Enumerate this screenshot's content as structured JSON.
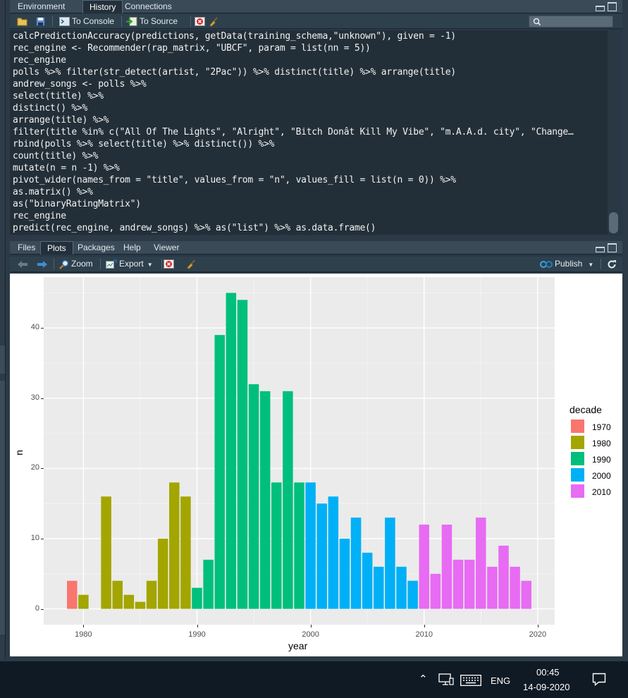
{
  "top_pane": {
    "tabs": [
      "Environment",
      "History",
      "Connections"
    ],
    "active_tab": "History",
    "toolbar": {
      "to_console": "To Console",
      "to_source": "To Source"
    },
    "history_lines": [
      "calcPredictionAccuracy(predictions, getData(training_schema,\"unknown\"), given = -1)",
      "rec_engine <- Recommender(rap_matrix, \"UBCF\", param = list(nn = 5))",
      "rec_engine",
      "polls %>% filter(str_detect(artist, \"2Pac\")) %>% distinct(title) %>% arrange(title)",
      "andrew_songs <- polls %>%",
      "select(title) %>%",
      "distinct() %>%",
      "arrange(title) %>%",
      "filter(title %in% c(\"All Of The Lights\", \"Alright\", \"Bitch Donât Kill My Vibe\", \"m.A.A.d. city\", \"Change…",
      "rbind(polls %>% select(title) %>% distinct()) %>%",
      "count(title) %>%",
      "mutate(n = n -1) %>%",
      "pivot_wider(names_from = \"title\", values_from = \"n\", values_fill = list(n = 0)) %>%",
      "as.matrix() %>%",
      "as(\"binaryRatingMatrix\")",
      "rec_engine",
      "predict(rec_engine, andrew_songs) %>% as(\"list\") %>% as.data.frame()"
    ]
  },
  "bottom_pane": {
    "tabs": [
      "Files",
      "Plots",
      "Packages",
      "Help",
      "Viewer"
    ],
    "active_tab": "Plots",
    "toolbar": {
      "zoom": "Zoom",
      "export": "Export",
      "publish": "Publish"
    }
  },
  "chart_data": {
    "type": "bar",
    "xlabel": "year",
    "ylabel": "n",
    "x_ticks": [
      1980,
      1990,
      2000,
      2010,
      2020
    ],
    "y_ticks": [
      0,
      10,
      20,
      30,
      40
    ],
    "xlim": [
      1976.5,
      2021.5
    ],
    "ylim": [
      -2.25,
      47.25
    ],
    "legend": {
      "title": "decade",
      "placement": "right",
      "entries": [
        {
          "name": "1970",
          "color": "#F8766D"
        },
        {
          "name": "1980",
          "color": "#A3A500"
        },
        {
          "name": "1990",
          "color": "#00BF7D"
        },
        {
          "name": "2000",
          "color": "#00B0F6"
        },
        {
          "name": "2010",
          "color": "#E76BF3"
        }
      ]
    },
    "bars": [
      {
        "year": 1979,
        "n": 4,
        "decade": "1970"
      },
      {
        "year": 1980,
        "n": 2,
        "decade": "1980"
      },
      {
        "year": 1982,
        "n": 16,
        "decade": "1980"
      },
      {
        "year": 1983,
        "n": 4,
        "decade": "1980"
      },
      {
        "year": 1984,
        "n": 2,
        "decade": "1980"
      },
      {
        "year": 1985,
        "n": 1,
        "decade": "1980"
      },
      {
        "year": 1986,
        "n": 4,
        "decade": "1980"
      },
      {
        "year": 1987,
        "n": 10,
        "decade": "1980"
      },
      {
        "year": 1988,
        "n": 18,
        "decade": "1980"
      },
      {
        "year": 1989,
        "n": 16,
        "decade": "1980"
      },
      {
        "year": 1990,
        "n": 3,
        "decade": "1990"
      },
      {
        "year": 1991,
        "n": 7,
        "decade": "1990"
      },
      {
        "year": 1992,
        "n": 39,
        "decade": "1990"
      },
      {
        "year": 1993,
        "n": 45,
        "decade": "1990"
      },
      {
        "year": 1994,
        "n": 44,
        "decade": "1990"
      },
      {
        "year": 1995,
        "n": 32,
        "decade": "1990"
      },
      {
        "year": 1996,
        "n": 31,
        "decade": "1990"
      },
      {
        "year": 1997,
        "n": 18,
        "decade": "1990"
      },
      {
        "year": 1998,
        "n": 31,
        "decade": "1990"
      },
      {
        "year": 1999,
        "n": 18,
        "decade": "1990"
      },
      {
        "year": 2000,
        "n": 18,
        "decade": "2000"
      },
      {
        "year": 2001,
        "n": 15,
        "decade": "2000"
      },
      {
        "year": 2002,
        "n": 16,
        "decade": "2000"
      },
      {
        "year": 2003,
        "n": 10,
        "decade": "2000"
      },
      {
        "year": 2004,
        "n": 13,
        "decade": "2000"
      },
      {
        "year": 2005,
        "n": 8,
        "decade": "2000"
      },
      {
        "year": 2006,
        "n": 6,
        "decade": "2000"
      },
      {
        "year": 2007,
        "n": 13,
        "decade": "2000"
      },
      {
        "year": 2008,
        "n": 6,
        "decade": "2000"
      },
      {
        "year": 2009,
        "n": 4,
        "decade": "2000"
      },
      {
        "year": 2010,
        "n": 12,
        "decade": "2010"
      },
      {
        "year": 2011,
        "n": 5,
        "decade": "2010"
      },
      {
        "year": 2012,
        "n": 12,
        "decade": "2010"
      },
      {
        "year": 2013,
        "n": 7,
        "decade": "2010"
      },
      {
        "year": 2014,
        "n": 7,
        "decade": "2010"
      },
      {
        "year": 2015,
        "n": 13,
        "decade": "2010"
      },
      {
        "year": 2016,
        "n": 6,
        "decade": "2010"
      },
      {
        "year": 2017,
        "n": 9,
        "decade": "2010"
      },
      {
        "year": 2018,
        "n": 6,
        "decade": "2010"
      },
      {
        "year": 2019,
        "n": 4,
        "decade": "2010"
      }
    ]
  },
  "taskbar": {
    "language": "ENG",
    "time": "00:45",
    "date": "14-09-2020"
  },
  "colors": {
    "panel_bg": "#ebebeb",
    "grid": "#ffffff",
    "ide_dark": "#283846",
    "console_bg": "#232f38",
    "taskbar": "#101a24"
  }
}
